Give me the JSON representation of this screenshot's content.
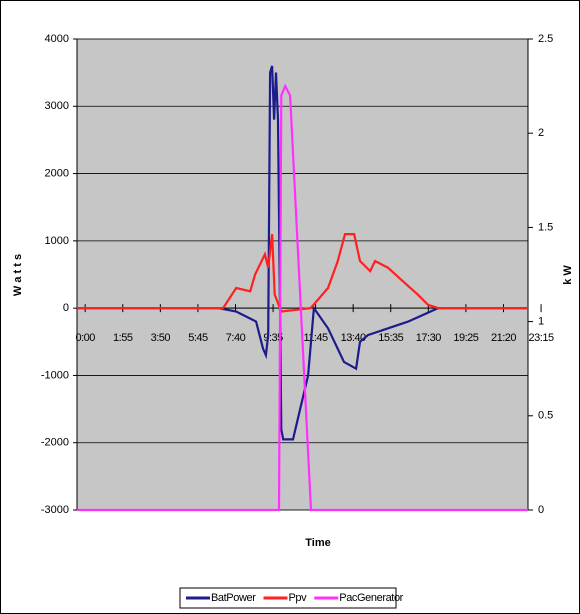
{
  "chart_data": {
    "type": "line",
    "x_label": "Time",
    "y_label": "W a t t s",
    "y2_label": "k W",
    "xlim": [
      -25,
      1355
    ],
    "xticks": [
      {
        "value": 0,
        "label": "0:00"
      },
      {
        "value": 115,
        "label": "1:55"
      },
      {
        "value": 230,
        "label": "3:50"
      },
      {
        "value": 345,
        "label": "5:45"
      },
      {
        "value": 460,
        "label": "7:40"
      },
      {
        "value": 575,
        "label": "9:35"
      },
      {
        "value": 705,
        "label": "11:45"
      },
      {
        "value": 820,
        "label": "13:40"
      },
      {
        "value": 935,
        "label": "15:35"
      },
      {
        "value": 1050,
        "label": "17:30"
      },
      {
        "value": 1165,
        "label": "19:25"
      },
      {
        "value": 1280,
        "label": "21:20"
      },
      {
        "value": 1395,
        "label": "23:15"
      }
    ],
    "ylim": [
      -3000,
      4000
    ],
    "yticks": [
      -3000,
      -2000,
      -1000,
      0,
      1000,
      2000,
      3000,
      4000
    ],
    "y2lim": [
      0,
      2.5
    ],
    "y2ticks": [
      0,
      0.5,
      1,
      1.5,
      2,
      2.5
    ],
    "grid": true,
    "series": [
      {
        "name": "BatPower",
        "color": "#1c1c8c",
        "x": [
          -25,
          407,
          462,
          523,
          544,
          553,
          560,
          566,
          572,
          578,
          584,
          590,
          600,
          606,
          636,
          682,
          700,
          743,
          792,
          829,
          841,
          865,
          927,
          988,
          1034,
          1080,
          1355
        ],
        "values": [
          0,
          0,
          -50,
          -200,
          -600,
          -700,
          -400,
          3500,
          3600,
          2800,
          3500,
          2800,
          -1800,
          -1950,
          -1950,
          -1000,
          0,
          -300,
          -800,
          -900,
          -500,
          -400,
          -300,
          -200,
          -100,
          0,
          0
        ]
      },
      {
        "name": "Ppv",
        "color": "#ff2020",
        "x": [
          -25,
          422,
          462,
          505,
          520,
          550,
          560,
          572,
          580,
          600,
          690,
          743,
          773,
          795,
          823,
          841,
          872,
          887,
          927,
          972,
          1018,
          1049,
          1080,
          1355
        ],
        "values": [
          0,
          0,
          300,
          250,
          500,
          800,
          600,
          1100,
          200,
          -50,
          0,
          300,
          700,
          1100,
          1100,
          700,
          550,
          700,
          600,
          400,
          200,
          50,
          0,
          0
        ]
      },
      {
        "name": "PacGenerator",
        "color": "#ff30ff",
        "axis": "y2",
        "x": [
          -25,
          593,
          600,
          612,
          627,
          691,
          1355
        ],
        "values": [
          0,
          0,
          2.2,
          2.25,
          2.2,
          0,
          0
        ]
      }
    ]
  }
}
